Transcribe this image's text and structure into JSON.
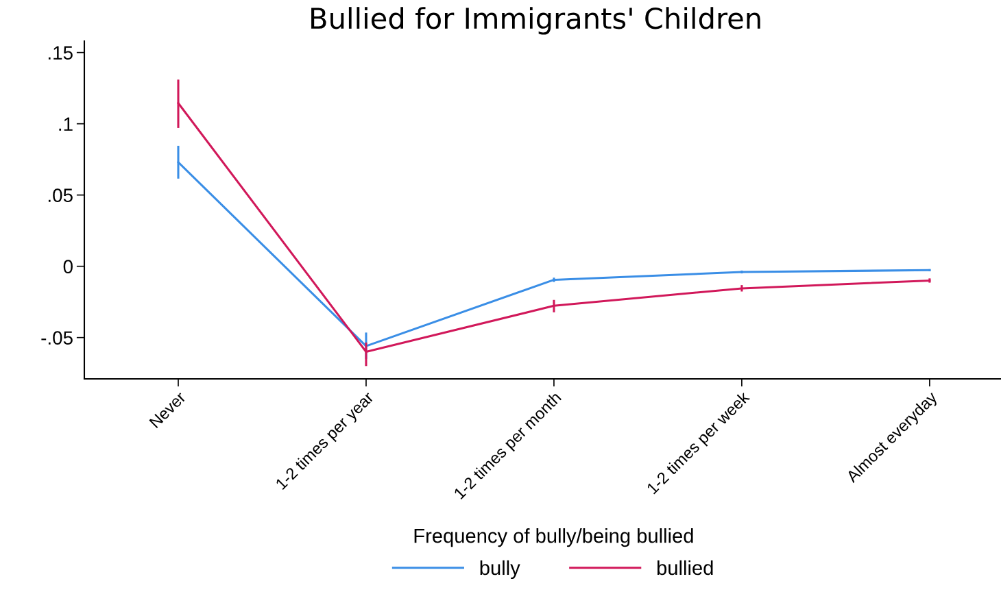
{
  "chart_data": {
    "type": "line",
    "title": "Bullied for Immigrants' Children",
    "xlabel": "Frequency of bully/being bullied",
    "categories": [
      "Never",
      "1-2 times per year",
      "1-2 times per month",
      "1-2 times per week",
      "Almost everyday"
    ],
    "series": [
      {
        "name": "bully",
        "color": "#3a8ee6",
        "values": [
          0.073,
          -0.056,
          -0.0095,
          -0.004,
          -0.0027
        ],
        "errors": [
          [
            0.0615,
            0.0845
          ],
          [
            -0.065,
            -0.0465
          ],
          [
            -0.011,
            -0.008
          ],
          [
            -0.005,
            -0.003
          ],
          [
            -0.0035,
            -0.002
          ]
        ]
      },
      {
        "name": "bullied",
        "color": "#d1185a",
        "values": [
          0.1145,
          -0.06,
          -0.0277,
          -0.0155,
          -0.01
        ],
        "errors": [
          [
            0.097,
            0.131
          ],
          [
            -0.07,
            -0.0535
          ],
          [
            -0.0323,
            -0.0236
          ],
          [
            -0.0177,
            -0.0132
          ],
          [
            -0.0115,
            -0.0085
          ]
        ]
      }
    ],
    "ylim": [
      -0.079,
      0.158
    ],
    "yticks": [
      {
        "value": -0.05,
        "label": "-.05"
      },
      0,
      {
        "value": 0.05,
        "label": ".05"
      },
      {
        "value": 0.1,
        "label": ".1"
      },
      {
        "value": 0.15,
        "label": ".15"
      }
    ],
    "grid": false,
    "legend": "bottom",
    "marker": "none",
    "line_style": "solid"
  }
}
